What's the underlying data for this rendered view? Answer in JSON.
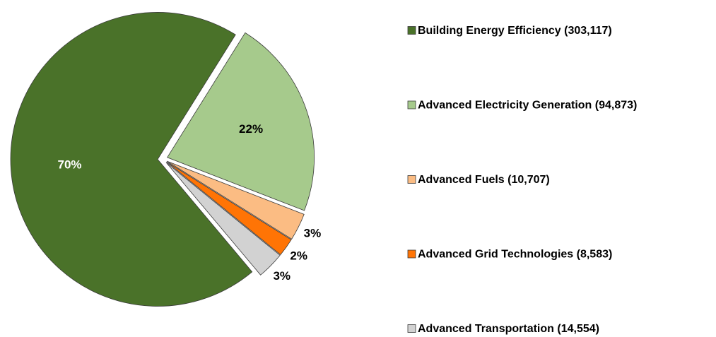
{
  "chart_data": {
    "type": "pie",
    "categories": [
      "Building Energy Efficiency (303,117)",
      "Advanced Electricity Generation (94,873)",
      "Advanced Fuels (10,707)",
      "Advanced Grid Technologies (8,583)",
      "Advanced Transportation (14,554)"
    ],
    "values": [
      70,
      22,
      3,
      2,
      3
    ],
    "value_labels": [
      "70%",
      "22%",
      "3%",
      "2%",
      "3%"
    ],
    "colors": [
      "#4a7229",
      "#a6ca8c",
      "#fbbc83",
      "#ff7405",
      "#d2d2d2"
    ],
    "legend": "right"
  }
}
